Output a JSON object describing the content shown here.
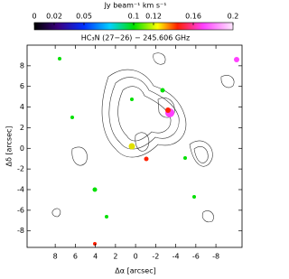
{
  "chart_data": {
    "type": "image",
    "colorbar": {
      "label": "Jy beam⁻¹ km s⁻¹",
      "lim": [
        0,
        0.2
      ],
      "ticks": [
        0,
        0.02,
        0.05,
        0.1,
        0.12,
        0.16,
        0.2
      ]
    },
    "annotation": "HC₃N (27−26) − 245.606 GHz",
    "xlabel": "Δα [arcsec]",
    "ylabel": "Δδ [arcsec]",
    "xlim": [
      10.8,
      -10.6
    ],
    "xticks": [
      8,
      6,
      4,
      2,
      0,
      -2,
      -4,
      -6,
      -8
    ],
    "ylim": [
      -9.6,
      10
    ],
    "yticks": [
      -8,
      -6,
      -4,
      -2,
      0,
      2,
      4,
      6,
      8
    ]
  }
}
